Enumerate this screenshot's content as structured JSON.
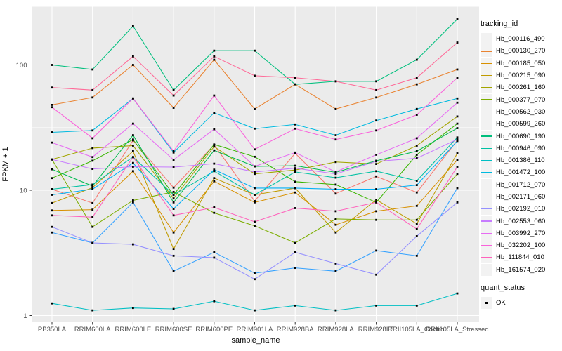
{
  "chart_data": {
    "type": "line",
    "title": "",
    "xlabel": "sample_name",
    "ylabel": "FPKM + 1",
    "y_scale": "log10",
    "y_ticks": [
      1,
      10,
      100
    ],
    "ylim": [
      1,
      260
    ],
    "grid": true,
    "plot_background": "#EBEBEB",
    "grid_color": "#FFFFFF",
    "tick_text_color": "#4D4D4D",
    "point_marker": "black-square",
    "categories": [
      "PB350LA",
      "RRIM600LA",
      "RRIM600LE",
      "RRIM600SE",
      "RRIM600PE",
      "RRIM901LA",
      "RRIM928BA",
      "RRIM928LA",
      "RRIM928LE",
      "RRII105LA_Control",
      "RRII105LA_Stressed"
    ],
    "legend": {
      "title": "tracking_id",
      "position": "right"
    },
    "quant_status": {
      "title": "quant_status",
      "value": "OK"
    },
    "series": [
      {
        "name": "Hb_000116_490",
        "color": "#F8766D",
        "values": [
          10.2,
          7.9,
          25,
          10.5,
          23,
          8.2,
          19.7,
          9.4,
          12.9,
          9.6,
          25
        ]
      },
      {
        "name": "Hb_000130_270",
        "color": "#EA8331",
        "values": [
          48,
          55,
          100,
          45.5,
          110,
          44.5,
          70,
          44.5,
          55,
          70,
          92
        ]
      },
      {
        "name": "Hb_000185_050",
        "color": "#D89000",
        "values": [
          6.9,
          7.0,
          14.2,
          4.6,
          11.8,
          8.0,
          9.6,
          5.3,
          6.8,
          7.5,
          17.5
        ]
      },
      {
        "name": "Hb_000215_090",
        "color": "#C09B00",
        "values": [
          7.9,
          10.5,
          20.5,
          3.4,
          12.5,
          9.2,
          10.4,
          4.6,
          8.4,
          5.4,
          19.7
        ]
      },
      {
        "name": "Hb_000261_160",
        "color": "#A3A500",
        "values": [
          17.6,
          21.7,
          22.7,
          8.6,
          22.3,
          13.5,
          14.5,
          16.8,
          16.2,
          22.7,
          38.8
        ]
      },
      {
        "name": "Hb_000377_070",
        "color": "#7CAE00",
        "values": [
          17.6,
          5.1,
          8.3,
          9.7,
          6.6,
          5.2,
          3.8,
          5.9,
          5.8,
          5.8,
          13.5
        ]
      },
      {
        "name": "Hb_000562_030",
        "color": "#39B600",
        "values": [
          12.5,
          17.2,
          25.4,
          9.2,
          23.2,
          18.5,
          11.7,
          11.1,
          8.0,
          19.2,
          34
        ]
      },
      {
        "name": "Hb_000599_260",
        "color": "#00BB4E",
        "values": [
          14.7,
          10.8,
          27.5,
          8.0,
          20.8,
          15.5,
          15.7,
          13.9,
          17.2,
          20.5,
          31.3
        ]
      },
      {
        "name": "Hb_000690_190",
        "color": "#00BF7D",
        "values": [
          100,
          92,
          204,
          63,
          130,
          130,
          70,
          74,
          74,
          110,
          232
        ]
      },
      {
        "name": "Hb_000946_090",
        "color": "#00C1A3",
        "values": [
          10.2,
          11.1,
          18.4,
          9.2,
          14.2,
          9.2,
          14,
          12.6,
          14.2,
          11.9,
          26.4
        ]
      },
      {
        "name": "Hb_001386_110",
        "color": "#00BFC4",
        "values": [
          1.25,
          1.1,
          1.15,
          1.13,
          1.3,
          1.1,
          1.2,
          1.1,
          1.2,
          1.2,
          1.5
        ]
      },
      {
        "name": "Hb_001472_100",
        "color": "#00BAE0",
        "values": [
          29,
          30,
          54,
          20,
          41.5,
          31,
          33.5,
          27.5,
          36,
          44.5,
          54
        ]
      },
      {
        "name": "Hb_001712_070",
        "color": "#00B0F6",
        "values": [
          9.2,
          10.2,
          16.5,
          7.1,
          14.6,
          10.4,
          10.4,
          10.2,
          10.2,
          11,
          24.7
        ]
      },
      {
        "name": "Hb_002171_060",
        "color": "#35A2FF",
        "values": [
          4.6,
          3.8,
          8.0,
          2.26,
          3.2,
          2.18,
          2.4,
          2.26,
          3.3,
          3.0,
          10.4
        ]
      },
      {
        "name": "Hb_002192_010",
        "color": "#9590FF",
        "values": [
          5.1,
          3.8,
          3.7,
          3.0,
          2.9,
          1.95,
          3.2,
          2.6,
          2.12,
          4.3,
          8.0
        ]
      },
      {
        "name": "Hb_002553_060",
        "color": "#C77CFF",
        "values": [
          17.6,
          14.8,
          15.4,
          15.3,
          16.3,
          14,
          15.0,
          13.5,
          17,
          18,
          25.5
        ]
      },
      {
        "name": "Hb_003992_270",
        "color": "#E76BF3",
        "values": [
          24,
          18.4,
          34,
          17.5,
          30.7,
          15.5,
          20,
          14,
          19.2,
          26,
          50
        ]
      },
      {
        "name": "Hb_032202_100",
        "color": "#FA62DB",
        "values": [
          46,
          26,
          54,
          20.5,
          57,
          21.2,
          31,
          25.4,
          30,
          40,
          79
        ]
      },
      {
        "name": "Hb_111844_010",
        "color": "#FF62BC",
        "values": [
          6.3,
          6.1,
          18.4,
          6.3,
          7.3,
          5.6,
          7.2,
          6.8,
          8.0,
          4.9,
          15.4
        ]
      },
      {
        "name": "Hb_161574_020",
        "color": "#FF6A98",
        "values": [
          66,
          63,
          117,
          57,
          117,
          82,
          79,
          74,
          63,
          79,
          151
        ]
      }
    ]
  }
}
